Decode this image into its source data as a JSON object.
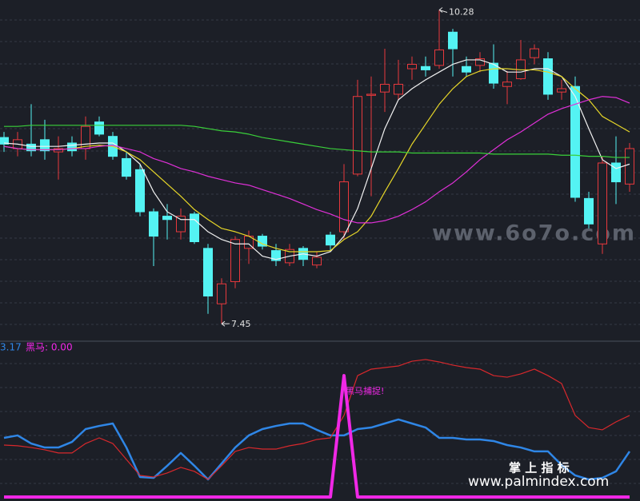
{
  "chart_data": [
    {
      "type": "candlestick",
      "ylim": [
        7.3,
        10.37
      ],
      "up_color": "#e8393d",
      "down_color": "#54f3f3",
      "open": [
        9.13,
        9.03,
        9.07,
        9.11,
        9.0,
        9.08,
        9.03,
        9.27,
        9.14,
        8.94,
        8.84,
        8.46,
        8.42,
        8.28,
        8.44,
        8.13,
        7.63,
        7.83,
        8.13,
        8.24,
        8.11,
        8.0,
        8.13,
        7.98,
        8.25,
        8.28,
        8.8,
        9.51,
        9.54,
        9.52,
        9.75,
        9.77,
        9.78,
        10.08,
        9.77,
        9.78,
        9.8,
        9.59,
        9.66,
        9.85,
        9.84,
        9.54,
        9.59,
        8.58,
        8.17,
        8.9,
        8.71
      ],
      "high": [
        9.18,
        9.18,
        9.43,
        9.29,
        9.14,
        9.14,
        9.32,
        9.32,
        9.18,
        9.0,
        8.89,
        8.49,
        8.53,
        8.49,
        8.46,
        8.17,
        7.86,
        8.24,
        8.29,
        8.26,
        8.17,
        8.17,
        8.15,
        8.1,
        8.28,
        8.89,
        9.65,
        9.68,
        9.93,
        9.83,
        9.86,
        9.86,
        10.28,
        10.11,
        9.86,
        9.9,
        9.97,
        9.73,
        10.01,
        9.97,
        9.9,
        9.65,
        9.68,
        8.64,
        8.96,
        9.14,
        9.08
      ],
      "low": [
        9.0,
        8.96,
        8.96,
        8.93,
        8.75,
        8.96,
        8.93,
        9.14,
        8.93,
        8.75,
        8.42,
        7.97,
        8.21,
        8.21,
        8.17,
        7.54,
        7.45,
        7.77,
        7.99,
        8.12,
        7.97,
        7.97,
        7.97,
        7.95,
        8.1,
        8.21,
        8.78,
        8.6,
        9.36,
        9.47,
        9.65,
        9.68,
        9.75,
        9.68,
        9.68,
        9.72,
        9.57,
        9.43,
        9.65,
        9.79,
        9.47,
        9.47,
        8.55,
        8.31,
        8.08,
        8.53,
        8.64
      ],
      "close": [
        9.07,
        9.11,
        9.01,
        9.01,
        9.03,
        9.01,
        9.23,
        9.16,
        8.96,
        8.78,
        8.46,
        8.24,
        8.39,
        8.42,
        8.19,
        7.7,
        7.81,
        8.21,
        8.24,
        8.15,
        8.02,
        8.12,
        8.03,
        8.05,
        8.16,
        8.73,
        9.5,
        9.52,
        9.61,
        9.61,
        9.79,
        9.74,
        9.92,
        9.93,
        9.72,
        9.84,
        9.62,
        9.63,
        9.83,
        9.93,
        9.52,
        9.57,
        8.59,
        8.35,
        8.9,
        8.73,
        9.03
      ],
      "series": [
        {
          "color": "#f2f2f2",
          "values": [
            9.08,
            9.07,
            9.05,
            9.05,
            9.05,
            9.06,
            9.07,
            9.08,
            9.08,
            9.0,
            8.89,
            8.64,
            8.46,
            8.39,
            8.39,
            8.28,
            8.21,
            8.17,
            8.17,
            8.06,
            8.03,
            8.06,
            8.08,
            8.06,
            8.1,
            8.24,
            8.49,
            8.85,
            9.21,
            9.47,
            9.57,
            9.65,
            9.72,
            9.79,
            9.83,
            9.83,
            9.79,
            9.72,
            9.72,
            9.75,
            9.75,
            9.68,
            9.5,
            9.21,
            8.93,
            8.85,
            8.89
          ]
        },
        {
          "color": "#e6d628",
          "values": [
            9.05,
            9.03,
            9.02,
            9.02,
            9.02,
            9.03,
            9.05,
            9.06,
            9.05,
            9.0,
            8.93,
            8.82,
            8.71,
            8.6,
            8.48,
            8.39,
            8.31,
            8.28,
            8.24,
            8.17,
            8.13,
            8.1,
            8.1,
            8.1,
            8.11,
            8.21,
            8.28,
            8.42,
            8.64,
            8.85,
            9.07,
            9.25,
            9.43,
            9.57,
            9.68,
            9.73,
            9.75,
            9.75,
            9.74,
            9.74,
            9.72,
            9.68,
            9.57,
            9.47,
            9.32,
            9.25,
            9.18
          ]
        },
        {
          "color": "#e030d8",
          "values": [
            9.05,
            9.03,
            9.02,
            9.02,
            9.02,
            9.03,
            9.03,
            9.05,
            9.06,
            9.03,
            9.0,
            8.94,
            8.9,
            8.85,
            8.82,
            8.78,
            8.75,
            8.72,
            8.7,
            8.66,
            8.62,
            8.58,
            8.53,
            8.48,
            8.44,
            8.39,
            8.36,
            8.36,
            8.38,
            8.42,
            8.48,
            8.55,
            8.64,
            8.72,
            8.82,
            8.93,
            9.02,
            9.11,
            9.18,
            9.26,
            9.34,
            9.39,
            9.43,
            9.47,
            9.5,
            9.49,
            9.44
          ]
        },
        {
          "color": "#3ad03a",
          "values": [
            9.23,
            9.23,
            9.24,
            9.24,
            9.24,
            9.24,
            9.24,
            9.24,
            9.24,
            9.24,
            9.24,
            9.24,
            9.24,
            9.24,
            9.23,
            9.21,
            9.19,
            9.18,
            9.16,
            9.13,
            9.11,
            9.09,
            9.07,
            9.05,
            9.03,
            9.02,
            9.01,
            9.0,
            9.0,
            9.0,
            8.99,
            8.99,
            8.99,
            8.99,
            8.99,
            8.99,
            8.98,
            8.98,
            8.98,
            8.98,
            8.98,
            8.97,
            8.97,
            8.96,
            8.96,
            8.95,
            8.95
          ]
        }
      ]
    },
    {
      "type": "line",
      "ylim": [
        -0.28,
        10.5
      ],
      "header_texts": [
        "3.17",
        "黑马: 0.00"
      ],
      "annotation": "黑马捕捉!",
      "series": [
        {
          "color": "#2f86e6",
          "width": 2.5,
          "values": [
            4.11,
            4.28,
            3.72,
            3.44,
            3.44,
            3.83,
            4.72,
            4.94,
            5.11,
            3.44,
            1.39,
            1.33,
            2.17,
            3.06,
            2.17,
            1.22,
            2.33,
            3.44,
            4.28,
            4.72,
            4.94,
            5.11,
            5.11,
            4.67,
            4.28,
            4.28,
            4.72,
            4.83,
            5.11,
            5.39,
            5.11,
            4.83,
            4.11,
            4.11,
            4.0,
            4.0,
            3.89,
            3.61,
            3.44,
            3.17,
            3.17,
            2.22,
            1.5,
            1.22,
            1.33,
            1.78,
            3.17
          ]
        },
        {
          "color": "#d8282c",
          "width": 1.2,
          "values": [
            3.61,
            3.56,
            3.44,
            3.28,
            3.06,
            3.06,
            3.72,
            4.11,
            3.72,
            2.61,
            1.5,
            1.39,
            1.67,
            2.06,
            1.78,
            1.22,
            2.17,
            3.17,
            3.44,
            3.33,
            3.33,
            3.56,
            3.72,
            4.0,
            4.11,
            5.67,
            8.44,
            8.89,
            9.0,
            9.11,
            9.44,
            9.56,
            9.39,
            9.17,
            9.0,
            8.89,
            8.44,
            8.33,
            8.56,
            8.89,
            8.44,
            7.89,
            5.67,
            4.83,
            4.67,
            5.22,
            5.67
          ]
        },
        {
          "color": "#f028e6",
          "width": 4,
          "values": [
            0,
            0,
            0,
            0,
            0,
            0,
            0,
            0,
            0,
            0,
            0,
            0,
            0,
            0,
            0,
            0,
            0,
            0,
            0,
            0,
            0,
            0,
            0,
            0,
            0,
            8.44,
            0,
            0,
            0,
            0,
            0,
            0,
            0,
            0,
            0,
            0,
            0,
            0,
            0,
            0,
            0,
            0,
            0,
            0,
            0,
            0,
            0
          ]
        }
      ]
    }
  ],
  "watermarks": [
    "www.6o7o.com",
    "掌 上 指 标",
    "www.palmindex.com"
  ]
}
